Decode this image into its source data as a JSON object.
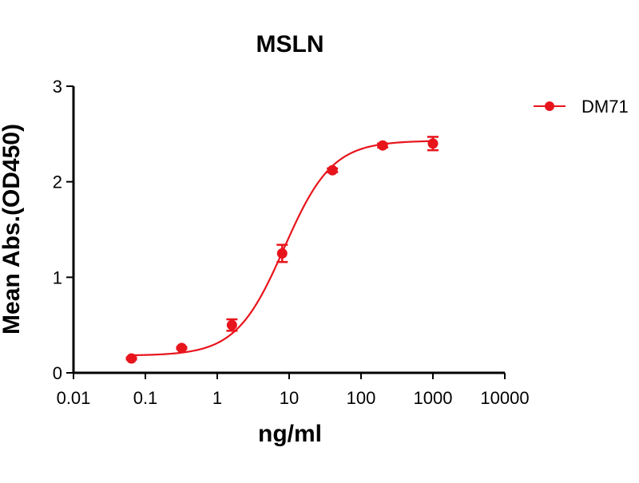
{
  "chart_data": {
    "type": "line",
    "title": "MSLN",
    "xlabel": "ng/ml",
    "ylabel": "Mean Abs.(OD450)",
    "x_scale": "log",
    "xlim": [
      0.01,
      10000
    ],
    "ylim": [
      0,
      3
    ],
    "x_ticks": [
      0.01,
      0.1,
      1,
      10,
      100,
      1000,
      10000
    ],
    "x_tick_labels": [
      "0.01",
      "0.1",
      "1",
      "10",
      "100",
      "1000",
      "10000"
    ],
    "y_ticks": [
      0,
      1,
      2,
      3
    ],
    "y_tick_labels": [
      "0",
      "1",
      "2",
      "3"
    ],
    "grid": false,
    "legend_position": "top-right",
    "color": "#e8141c",
    "series": [
      {
        "name": "DM71",
        "x": [
          0.064,
          0.32,
          1.6,
          8,
          40,
          200,
          1000
        ],
        "y": [
          0.15,
          0.26,
          0.5,
          1.25,
          2.12,
          2.38,
          2.4
        ],
        "err": [
          0.01,
          0.01,
          0.06,
          0.09,
          0.02,
          0.02,
          0.07
        ],
        "fit": {
          "bottom": 0.18,
          "top": 2.43,
          "ec50": 8.5,
          "hill": 1.3
        }
      }
    ]
  }
}
